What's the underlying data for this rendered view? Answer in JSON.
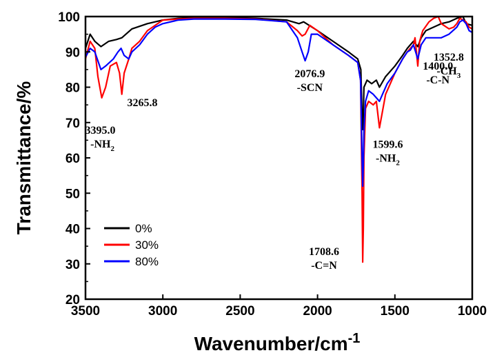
{
  "chart_data": {
    "type": "line",
    "xlabel": "Wavenumber/cm",
    "xlabel_sup": "-1",
    "ylabel": "Transmittance/%",
    "xlim": [
      3500,
      1000
    ],
    "ylim": [
      20,
      100
    ],
    "x_reversed": true,
    "xticks": [
      3500,
      3000,
      2500,
      2000,
      1500,
      1000
    ],
    "yticks": [
      20,
      30,
      40,
      50,
      60,
      70,
      80,
      90,
      100
    ],
    "grid": false,
    "legend_position": "bottom-left",
    "series": [
      {
        "name": "0%",
        "color": "#000000",
        "points": [
          [
            3500,
            91
          ],
          [
            3470,
            95
          ],
          [
            3440,
            93
          ],
          [
            3400,
            91.5
          ],
          [
            3350,
            93
          ],
          [
            3300,
            93.5
          ],
          [
            3265,
            94
          ],
          [
            3200,
            96.5
          ],
          [
            3100,
            98
          ],
          [
            3000,
            99
          ],
          [
            2900,
            99.5
          ],
          [
            2800,
            99.8
          ],
          [
            2600,
            99.8
          ],
          [
            2400,
            99.5
          ],
          [
            2200,
            99
          ],
          [
            2120,
            98
          ],
          [
            2090,
            98.5
          ],
          [
            2000,
            96
          ],
          [
            1900,
            93
          ],
          [
            1800,
            90
          ],
          [
            1740,
            88
          ],
          [
            1720,
            85
          ],
          [
            1712,
            72
          ],
          [
            1708,
            68
          ],
          [
            1704,
            72
          ],
          [
            1700,
            80
          ],
          [
            1680,
            82
          ],
          [
            1650,
            81
          ],
          [
            1620,
            82
          ],
          [
            1600,
            80
          ],
          [
            1560,
            83
          ],
          [
            1500,
            86
          ],
          [
            1450,
            89
          ],
          [
            1420,
            91
          ],
          [
            1400,
            92
          ],
          [
            1380,
            93
          ],
          [
            1352,
            91.5
          ],
          [
            1330,
            94
          ],
          [
            1300,
            96
          ],
          [
            1250,
            97
          ],
          [
            1200,
            98
          ],
          [
            1150,
            98.5
          ],
          [
            1100,
            99.5
          ],
          [
            1060,
            100
          ],
          [
            1040,
            98
          ],
          [
            1000,
            97.5
          ]
        ]
      },
      {
        "name": "30%",
        "color": "#ff0000",
        "points": [
          [
            3500,
            88
          ],
          [
            3470,
            93
          ],
          [
            3440,
            91
          ],
          [
            3420,
            83
          ],
          [
            3395,
            77
          ],
          [
            3370,
            80
          ],
          [
            3340,
            86
          ],
          [
            3300,
            87
          ],
          [
            3280,
            84
          ],
          [
            3265,
            78
          ],
          [
            3250,
            84
          ],
          [
            3220,
            88
          ],
          [
            3200,
            91
          ],
          [
            3150,
            93
          ],
          [
            3100,
            96
          ],
          [
            3000,
            99
          ],
          [
            2900,
            99.3
          ],
          [
            2800,
            99.5
          ],
          [
            2600,
            99.5
          ],
          [
            2400,
            99.3
          ],
          [
            2200,
            98.5
          ],
          [
            2130,
            96
          ],
          [
            2100,
            94.5
          ],
          [
            2080,
            95
          ],
          [
            2050,
            97.5
          ],
          [
            2000,
            96
          ],
          [
            1900,
            92
          ],
          [
            1800,
            89
          ],
          [
            1740,
            87
          ],
          [
            1722,
            82
          ],
          [
            1712,
            50
          ],
          [
            1708,
            30.5
          ],
          [
            1704,
            40
          ],
          [
            1700,
            60
          ],
          [
            1690,
            74
          ],
          [
            1670,
            76
          ],
          [
            1640,
            75
          ],
          [
            1620,
            76
          ],
          [
            1600,
            68.5
          ],
          [
            1585,
            72
          ],
          [
            1560,
            78
          ],
          [
            1530,
            81
          ],
          [
            1500,
            84
          ],
          [
            1450,
            88
          ],
          [
            1420,
            90
          ],
          [
            1400,
            91
          ],
          [
            1380,
            92
          ],
          [
            1370,
            94
          ],
          [
            1352,
            86
          ],
          [
            1340,
            93
          ],
          [
            1320,
            96
          ],
          [
            1280,
            98.5
          ],
          [
            1250,
            99.5
          ],
          [
            1220,
            100
          ],
          [
            1200,
            98
          ],
          [
            1150,
            96.5
          ],
          [
            1120,
            97
          ],
          [
            1100,
            98
          ],
          [
            1080,
            99.5
          ],
          [
            1060,
            99
          ],
          [
            1040,
            98.5
          ],
          [
            1020,
            97
          ],
          [
            1000,
            96.5
          ]
        ]
      },
      {
        "name": "80%",
        "color": "#0000ff",
        "points": [
          [
            3500,
            88.5
          ],
          [
            3470,
            91
          ],
          [
            3440,
            90
          ],
          [
            3400,
            85
          ],
          [
            3370,
            86
          ],
          [
            3320,
            88
          ],
          [
            3290,
            90
          ],
          [
            3270,
            91
          ],
          [
            3250,
            89
          ],
          [
            3220,
            88
          ],
          [
            3200,
            90
          ],
          [
            3150,
            92
          ],
          [
            3100,
            95
          ],
          [
            3050,
            97
          ],
          [
            3000,
            98
          ],
          [
            2900,
            99
          ],
          [
            2800,
            99.3
          ],
          [
            2600,
            99.3
          ],
          [
            2400,
            99.2
          ],
          [
            2200,
            98.5
          ],
          [
            2130,
            94
          ],
          [
            2100,
            90
          ],
          [
            2080,
            87.5
          ],
          [
            2060,
            90
          ],
          [
            2040,
            95
          ],
          [
            2000,
            95
          ],
          [
            1900,
            92
          ],
          [
            1800,
            89
          ],
          [
            1740,
            87
          ],
          [
            1722,
            82
          ],
          [
            1712,
            60
          ],
          [
            1708,
            52
          ],
          [
            1704,
            58
          ],
          [
            1700,
            68
          ],
          [
            1690,
            76
          ],
          [
            1670,
            79
          ],
          [
            1640,
            78
          ],
          [
            1620,
            77
          ],
          [
            1600,
            76
          ],
          [
            1580,
            78
          ],
          [
            1550,
            81
          ],
          [
            1500,
            84
          ],
          [
            1450,
            88
          ],
          [
            1420,
            90
          ],
          [
            1400,
            90.5
          ],
          [
            1380,
            92
          ],
          [
            1352,
            88
          ],
          [
            1330,
            92
          ],
          [
            1300,
            94
          ],
          [
            1250,
            94
          ],
          [
            1200,
            94
          ],
          [
            1150,
            95
          ],
          [
            1100,
            97
          ],
          [
            1080,
            98.5
          ],
          [
            1060,
            99
          ],
          [
            1040,
            98
          ],
          [
            1020,
            96
          ],
          [
            1000,
            95.5
          ]
        ]
      }
    ],
    "annotations": [
      {
        "x": 3395.0,
        "y": 77,
        "label": "3395.0",
        "group": "-NH",
        "sub": "2"
      },
      {
        "x": 3265.8,
        "y": 78,
        "label": "3265.8"
      },
      {
        "x": 2076.9,
        "y": 87.5,
        "label": "2076.9",
        "group": "-SCN"
      },
      {
        "x": 1708.6,
        "y": 30.5,
        "label": "1708.6",
        "group": "-C=N"
      },
      {
        "x": 1599.6,
        "y": 68.5,
        "label": "1599.6",
        "group": "-NH",
        "sub": "2"
      },
      {
        "x": 1400.0,
        "y": 91,
        "label": "1400.0",
        "group": "-C-N"
      },
      {
        "x": 1352.8,
        "y": 86,
        "label": "1352.8",
        "group": "-CH",
        "sub": "3"
      }
    ]
  }
}
